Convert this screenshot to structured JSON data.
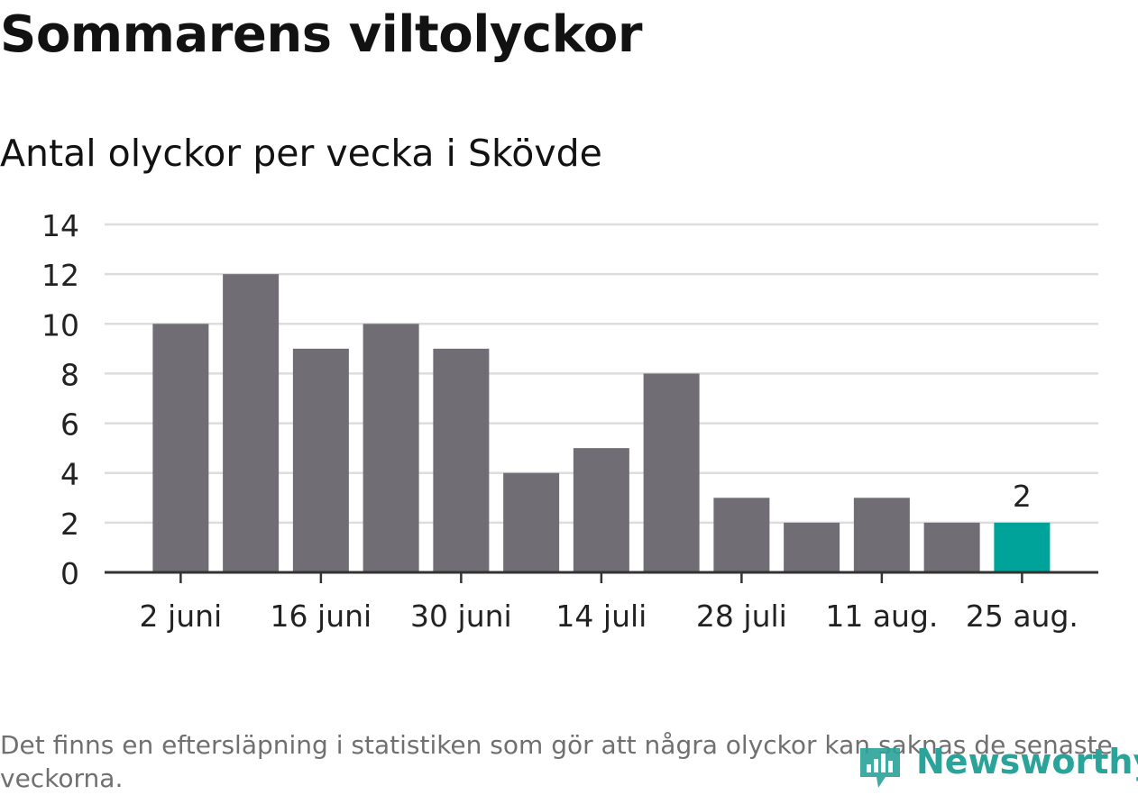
{
  "title": "Sommarens viltolyckor",
  "subtitle": "Antal olyckor per vecka i Skövde",
  "note": "Det finns en eftersläpning i statistiken som gör att några olyckor kan saknas de senaste veckorna.",
  "brand": {
    "name": "Newsworthy",
    "icon": "newsworthy-logo-icon"
  },
  "colors": {
    "bar": "#706e74",
    "highlight": "#00a39a",
    "grid": "#dddddd",
    "axis": "#333333",
    "text": "#222222",
    "brand": "#2aa39a"
  },
  "chart_data": {
    "type": "bar",
    "title": "Sommarens viltolyckor",
    "subtitle": "Antal olyckor per vecka i Skövde",
    "xlabel": "",
    "ylabel": "",
    "ylim": [
      0,
      14
    ],
    "yticks": [
      0,
      2,
      4,
      6,
      8,
      10,
      12,
      14
    ],
    "values": [
      10,
      12,
      9,
      10,
      9,
      4,
      5,
      8,
      3,
      2,
      3,
      2,
      2
    ],
    "x_tick_labels": [
      {
        "index": 0,
        "label": "2 juni"
      },
      {
        "index": 2,
        "label": "16 juni"
      },
      {
        "index": 4,
        "label": "30 juni"
      },
      {
        "index": 6,
        "label": "14 juli"
      },
      {
        "index": 8,
        "label": "28 juli"
      },
      {
        "index": 10,
        "label": "11 aug."
      },
      {
        "index": 12,
        "label": "25 aug."
      }
    ],
    "highlight_index": 12,
    "data_labels": [
      {
        "index": 12,
        "label": "2"
      }
    ],
    "grid": true,
    "legend": false
  }
}
